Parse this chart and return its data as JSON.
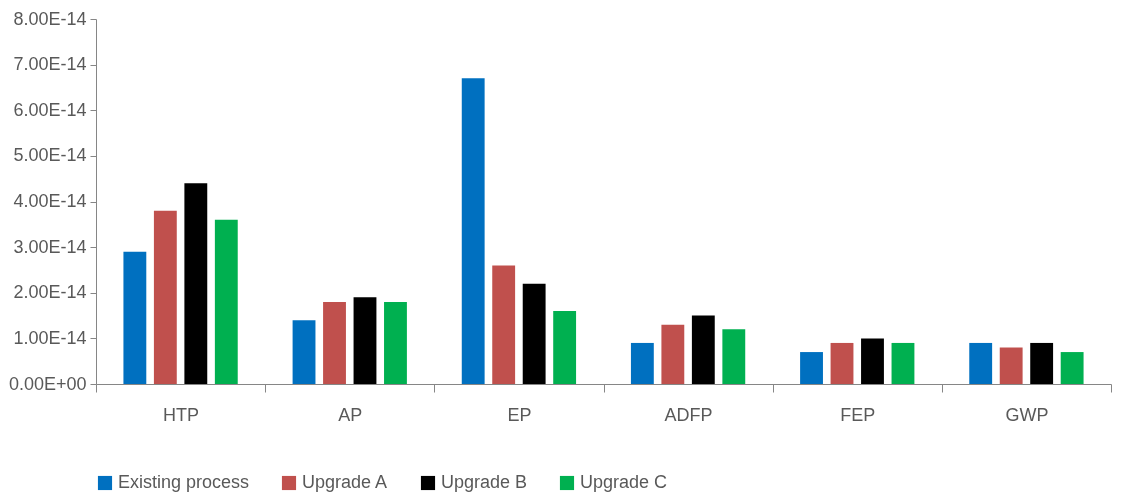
{
  "chart_data": {
    "type": "bar",
    "categories": [
      "HTP",
      "AP",
      "EP",
      "ADFP",
      "FEP",
      "GWP"
    ],
    "series": [
      {
        "name": "Existing process",
        "color": "#0070c0",
        "values": [
          2.9e-14,
          1.4e-14,
          6.7e-14,
          9e-15,
          7e-15,
          9e-15
        ]
      },
      {
        "name": "Upgrade A",
        "color": "#c0504d",
        "values": [
          3.8e-14,
          1.8e-14,
          2.6e-14,
          1.3e-14,
          9e-15,
          8e-15
        ]
      },
      {
        "name": "Upgrade B",
        "color": "#000000",
        "values": [
          4.4e-14,
          1.9e-14,
          2.2e-14,
          1.5e-14,
          1e-14,
          9e-15
        ]
      },
      {
        "name": "Upgrade C",
        "color": "#00b050",
        "values": [
          3.6e-14,
          1.8e-14,
          1.6e-14,
          1.2e-14,
          9e-15,
          7e-15
        ]
      }
    ],
    "ylim": [
      0,
      8e-14
    ],
    "yticks": [
      {
        "value": 0,
        "label": "0.00E+00"
      },
      {
        "value": 1e-14,
        "label": "1.00E-14"
      },
      {
        "value": 2e-14,
        "label": "2.00E-14"
      },
      {
        "value": 3e-14,
        "label": "3.00E-14"
      },
      {
        "value": 4e-14,
        "label": "4.00E-14"
      },
      {
        "value": 5e-14,
        "label": "5.00E-14"
      },
      {
        "value": 6e-14,
        "label": "6.00E-14"
      },
      {
        "value": 7e-14,
        "label": "7.00E-14"
      },
      {
        "value": 8e-14,
        "label": "8.00E-14"
      }
    ],
    "grid": false,
    "legend": "bottom"
  }
}
